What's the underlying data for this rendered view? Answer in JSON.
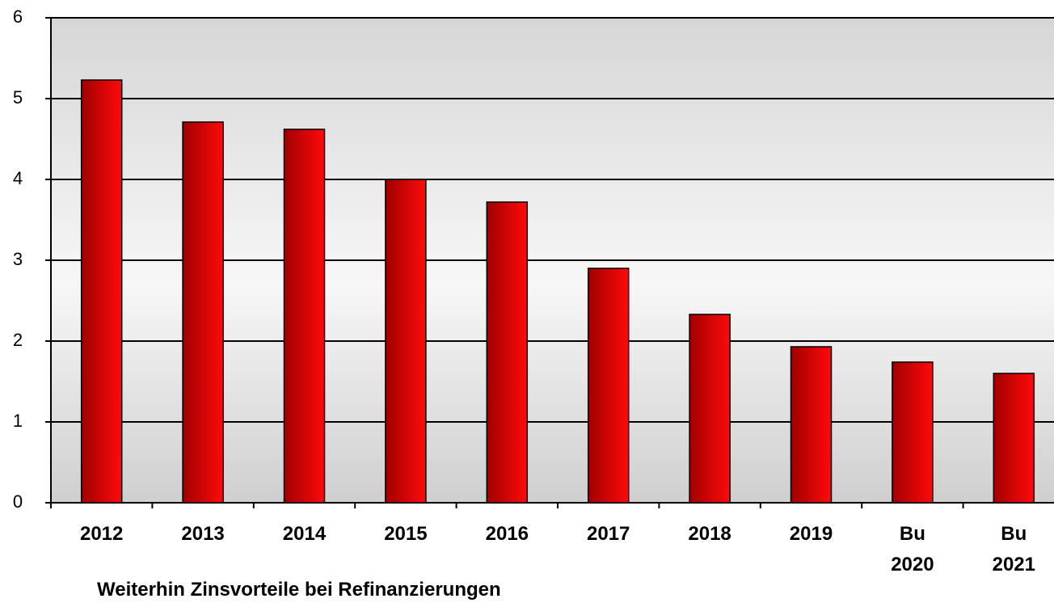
{
  "chart_data": {
    "type": "bar",
    "title": "Weiterhin Zinsvorteile bei Refinanzierungen",
    "categories": [
      "2012",
      "2013",
      "2014",
      "2015",
      "2016",
      "2017",
      "2018",
      "2019",
      "Bu 2020",
      "Bu 2021"
    ],
    "values": [
      5.23,
      4.71,
      4.62,
      4.0,
      3.72,
      2.9,
      2.33,
      1.93,
      1.74,
      1.6
    ],
    "color": "#e00000",
    "ylim": [
      0,
      6
    ],
    "yticks": [
      0,
      1,
      2,
      3,
      4,
      5,
      6
    ],
    "grid": true
  }
}
